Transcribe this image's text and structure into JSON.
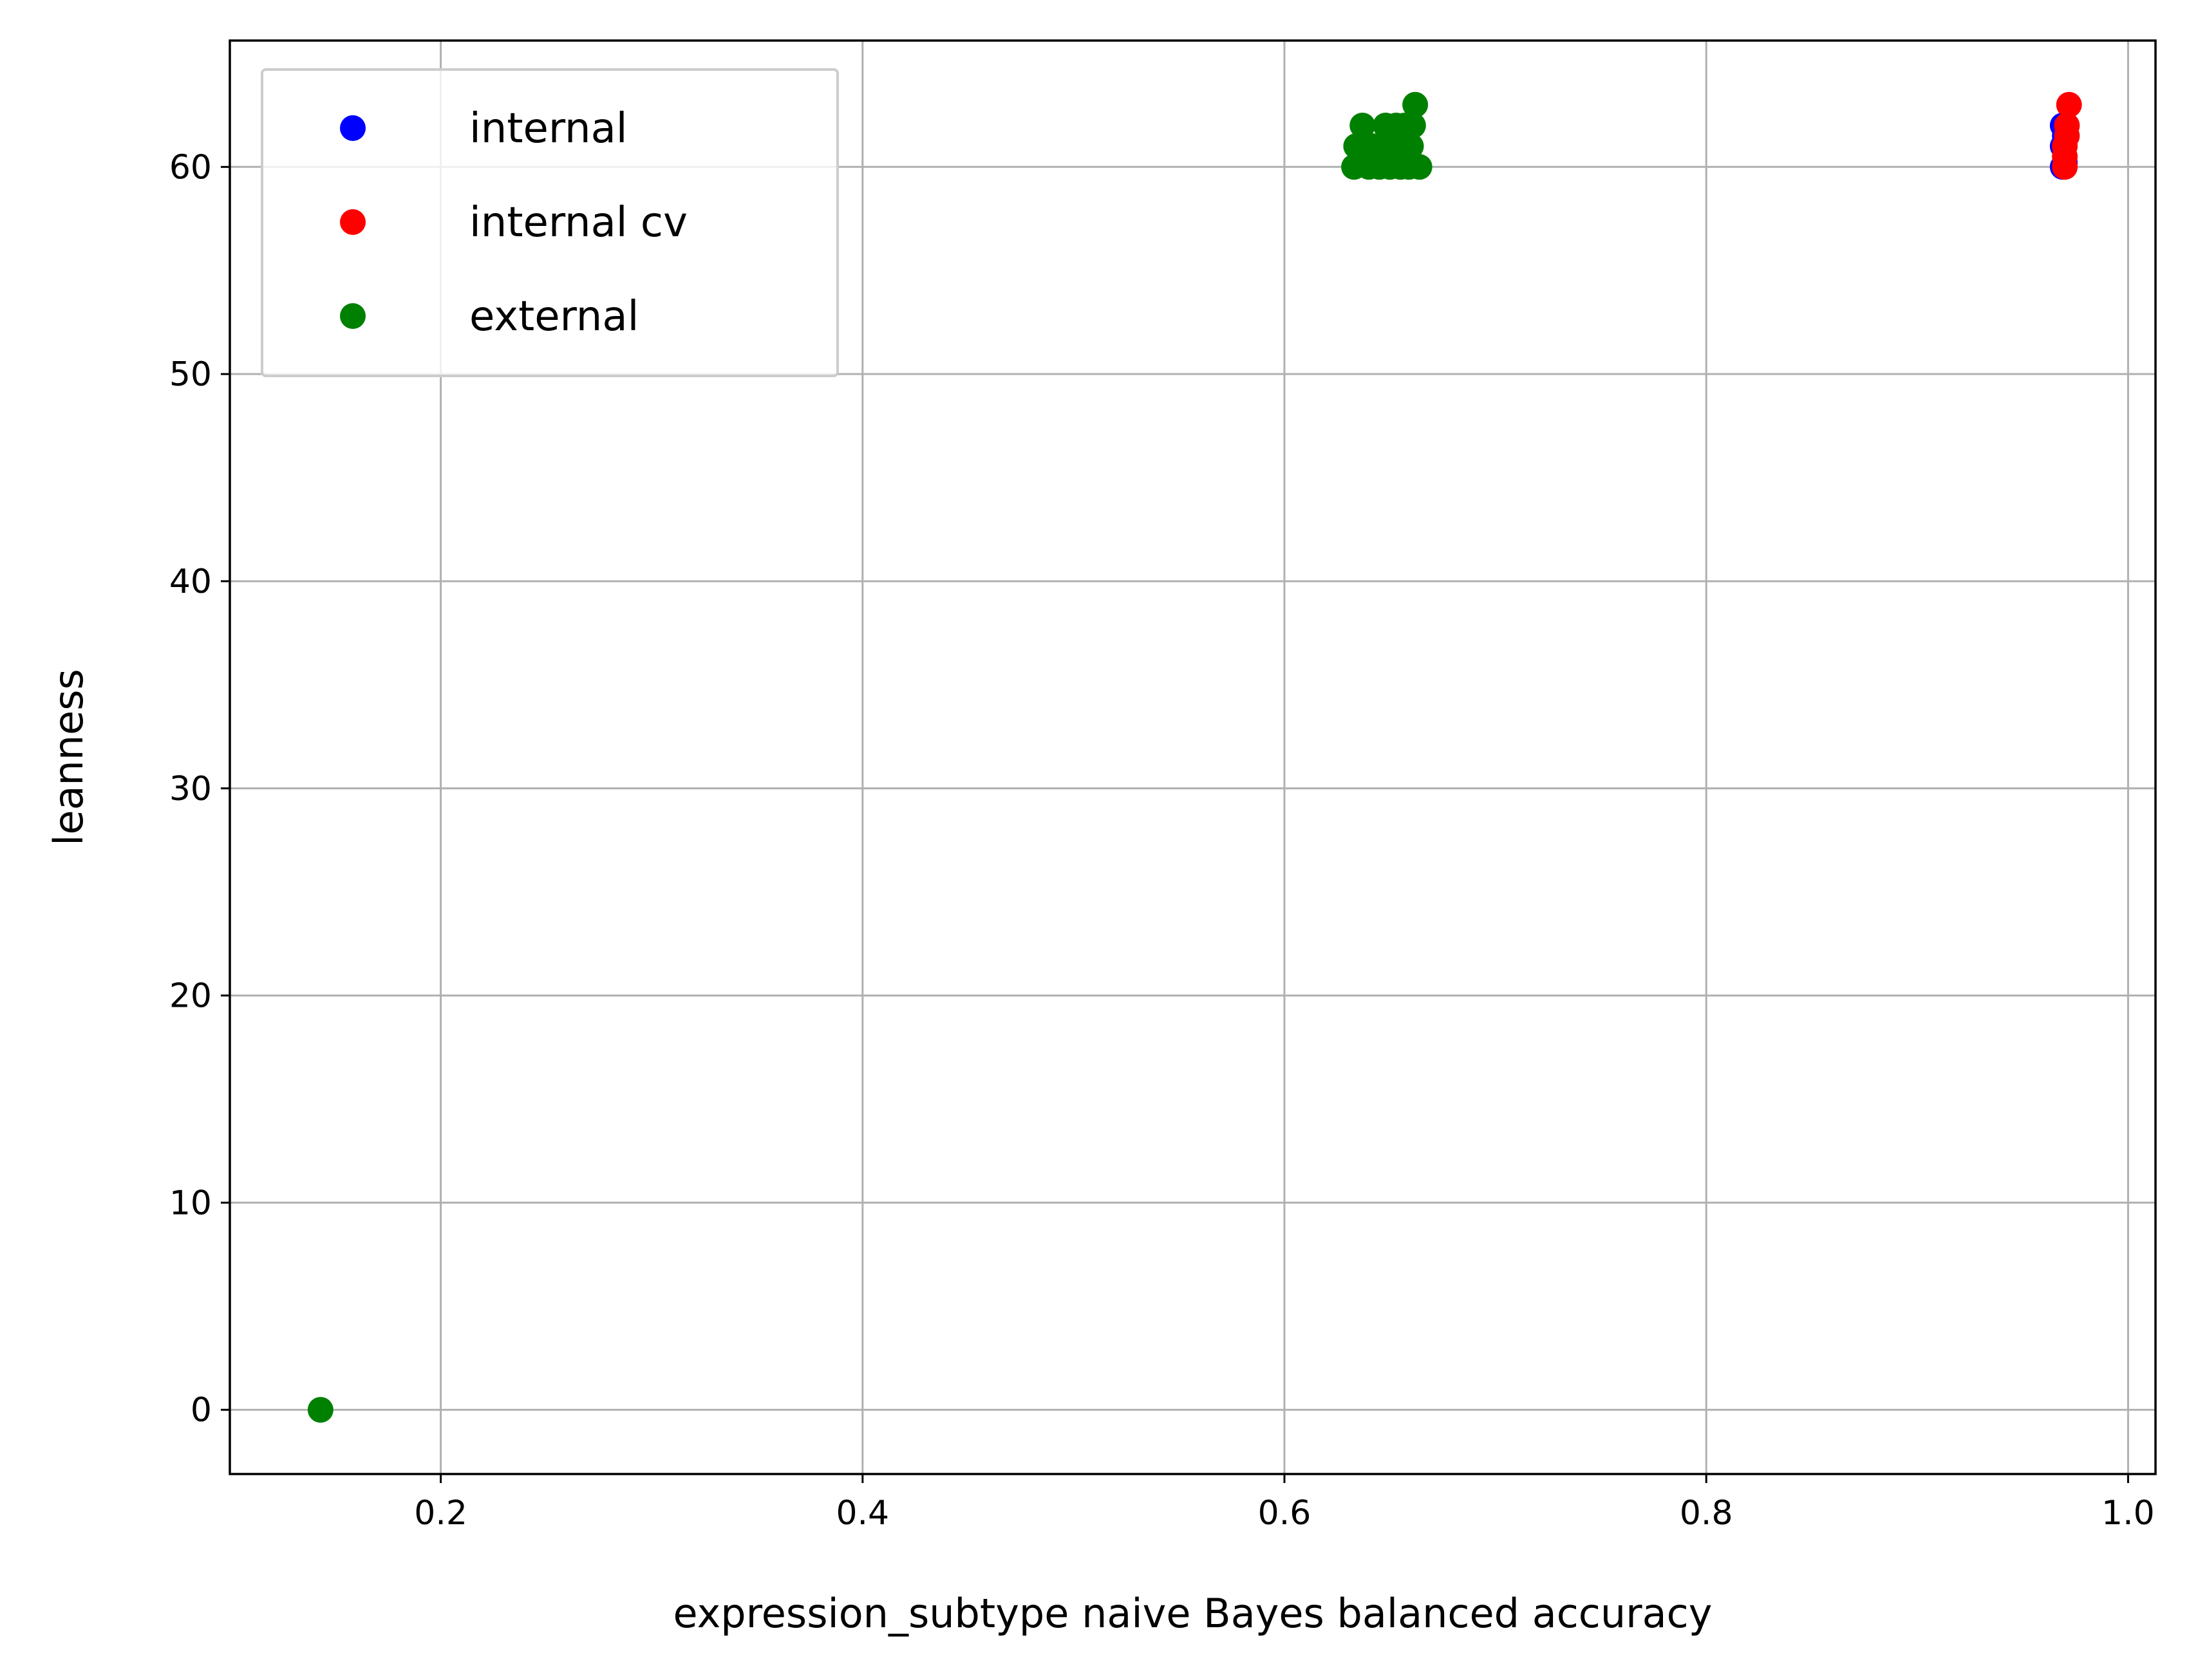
{
  "chart_data": {
    "type": "scatter",
    "title": "",
    "xlabel": "expression_subtype naive Bayes balanced accuracy",
    "ylabel": "leanness",
    "xlim": [
      0.1,
      1.013
    ],
    "ylim": [
      -3.1,
      66.1
    ],
    "xticks": [
      0.2,
      0.4,
      0.6,
      0.8,
      1.0
    ],
    "xtick_labels": [
      "0.2",
      "0.4",
      "0.6",
      "0.8",
      "1.0"
    ],
    "yticks": [
      0,
      10,
      20,
      30,
      40,
      50,
      60
    ],
    "ytick_labels": [
      "0",
      "10",
      "20",
      "30",
      "40",
      "50",
      "60"
    ],
    "grid": true,
    "legend_position": "top-left",
    "series": [
      {
        "name": "internal",
        "color": "#0000ff",
        "points": [
          [
            0.969,
            60
          ],
          [
            0.969,
            61
          ],
          [
            0.969,
            62
          ],
          [
            0.97,
            60.2
          ],
          [
            0.97,
            61.5
          ]
        ]
      },
      {
        "name": "internal cv",
        "color": "#ff0000",
        "points": [
          [
            0.97,
            60
          ],
          [
            0.97,
            61
          ],
          [
            0.971,
            62
          ],
          [
            0.972,
            63
          ],
          [
            0.97,
            60.5
          ],
          [
            0.971,
            61.5
          ]
        ]
      },
      {
        "name": "external",
        "color": "#008000",
        "points": [
          [
            0.143,
            0
          ],
          [
            0.633,
            60
          ],
          [
            0.634,
            61
          ],
          [
            0.637,
            62
          ],
          [
            0.64,
            60
          ],
          [
            0.642,
            61
          ],
          [
            0.645,
            60
          ],
          [
            0.647,
            61
          ],
          [
            0.648,
            62
          ],
          [
            0.65,
            60
          ],
          [
            0.652,
            61
          ],
          [
            0.653,
            62
          ],
          [
            0.655,
            60
          ],
          [
            0.656,
            61
          ],
          [
            0.657,
            62
          ],
          [
            0.659,
            60
          ],
          [
            0.66,
            61
          ],
          [
            0.661,
            62
          ],
          [
            0.662,
            63
          ],
          [
            0.664,
            60
          ]
        ]
      }
    ]
  }
}
